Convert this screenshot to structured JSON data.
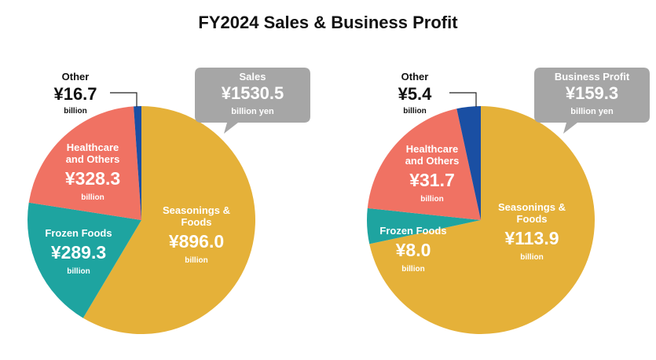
{
  "title": "FY2024 Sales & Business Profit",
  "colors": {
    "seasonings": "#e5b139",
    "frozen": "#1ea4a0",
    "healthcare": "#f07263",
    "other": "#1a4fa3",
    "callout": "#a6a6a6"
  },
  "chart_data": [
    {
      "type": "pie",
      "callout": {
        "title": "Sales",
        "value": "¥1530.5",
        "unit": "billion yen"
      },
      "slices": [
        {
          "name": "Seasonings & Foods",
          "label_lines": [
            "Seasonings &",
            "Foods"
          ],
          "value": 896.0,
          "value_label": "¥896.0",
          "unit": "billion",
          "color_key": "seasonings"
        },
        {
          "name": "Frozen Foods",
          "label_lines": [
            "Frozen Foods"
          ],
          "value": 289.3,
          "value_label": "¥289.3",
          "unit": "billion",
          "color_key": "frozen"
        },
        {
          "name": "Healthcare and Others",
          "label_lines": [
            "Healthcare",
            "and Others"
          ],
          "value": 328.3,
          "value_label": "¥328.3",
          "unit": "billion",
          "color_key": "healthcare"
        },
        {
          "name": "Other",
          "label_lines": [
            "Other"
          ],
          "value": 16.7,
          "value_label": "¥16.7",
          "unit": "billion",
          "color_key": "other"
        }
      ]
    },
    {
      "type": "pie",
      "callout": {
        "title": "Business Profit",
        "value": "¥159.3",
        "unit": "billion yen"
      },
      "slices": [
        {
          "name": "Seasonings & Foods",
          "label_lines": [
            "Seasonings &",
            "Foods"
          ],
          "value": 113.9,
          "value_label": "¥113.9",
          "unit": "billion",
          "color_key": "seasonings"
        },
        {
          "name": "Frozen Foods",
          "label_lines": [
            "Frozen Foods"
          ],
          "value": 8.0,
          "value_label": "¥8.0",
          "unit": "billion",
          "color_key": "frozen"
        },
        {
          "name": "Healthcare and Others",
          "label_lines": [
            "Healthcare",
            "and Others"
          ],
          "value": 31.7,
          "value_label": "¥31.7",
          "unit": "billion",
          "color_key": "healthcare"
        },
        {
          "name": "Other",
          "label_lines": [
            "Other"
          ],
          "value": 5.4,
          "value_label": "¥5.4",
          "unit": "billion",
          "color_key": "other"
        }
      ]
    }
  ]
}
